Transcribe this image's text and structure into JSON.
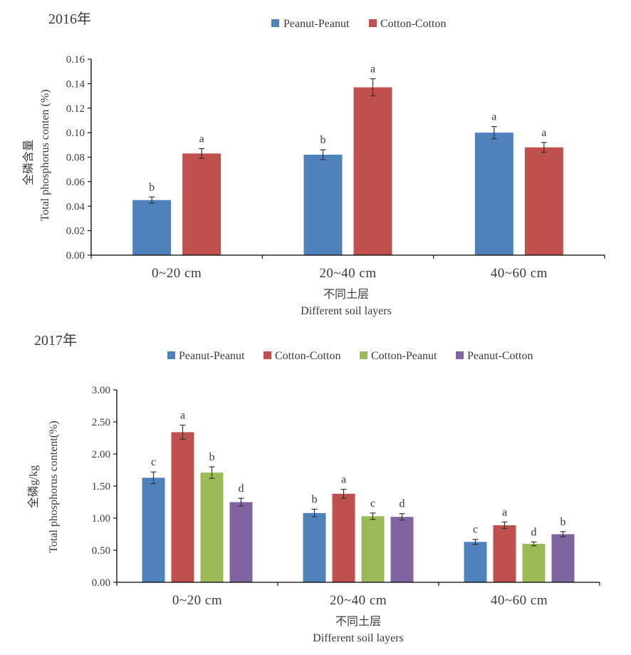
{
  "chart_data": [
    {
      "type": "bar",
      "title": "2016年",
      "categories": [
        "0~20 cm",
        "20~40 cm",
        "40~60 cm"
      ],
      "series": [
        {
          "name": "Peanut-Peanut",
          "color": "#4f81bd",
          "values": [
            0.045,
            0.082,
            0.1
          ],
          "errors": [
            0.0025,
            0.004,
            0.005
          ],
          "labels": [
            "b",
            "b",
            "a"
          ]
        },
        {
          "name": "Cotton-Cotton",
          "color": "#c0504d",
          "values": [
            0.083,
            0.137,
            0.088
          ],
          "errors": [
            0.004,
            0.007,
            0.004
          ],
          "labels": [
            "a",
            "a",
            "a"
          ]
        }
      ],
      "ylim": [
        0,
        0.16
      ],
      "yticks": [
        "0.00",
        "0.02",
        "0.04",
        "0.06",
        "0.08",
        "0.10",
        "0.12",
        "0.14",
        "0.16"
      ],
      "ylabel_cn": "全磷含量",
      "ylabel": "Total phosphorus conten (%)",
      "xlabel_cn": "不同土层",
      "xlabel": "Different soil layers",
      "legend": "top",
      "grid": false
    },
    {
      "type": "bar",
      "title": "2017年",
      "categories": [
        "0~20 cm",
        "20~40 cm",
        "40~60 cm"
      ],
      "series": [
        {
          "name": "Peanut-Peanut",
          "color": "#4f81bd",
          "values": [
            1.63,
            1.08,
            0.63
          ],
          "errors": [
            0.09,
            0.06,
            0.04
          ],
          "labels": [
            "c",
            "b",
            "c"
          ]
        },
        {
          "name": "Cotton-Cotton",
          "color": "#c0504d",
          "values": [
            2.34,
            1.38,
            0.89
          ],
          "errors": [
            0.11,
            0.07,
            0.05
          ],
          "labels": [
            "a",
            "a",
            "a"
          ]
        },
        {
          "name": "Cotton-Peanut",
          "color": "#9bbb59",
          "values": [
            1.71,
            1.03,
            0.6
          ],
          "errors": [
            0.09,
            0.05,
            0.03
          ],
          "labels": [
            "b",
            "c",
            "d"
          ]
        },
        {
          "name": "Peanut-Cotton",
          "color": "#8064a2",
          "values": [
            1.25,
            1.02,
            0.75
          ],
          "errors": [
            0.06,
            0.05,
            0.04
          ],
          "labels": [
            "d",
            "d",
            "b"
          ]
        }
      ],
      "ylim": [
        0,
        3.0
      ],
      "yticks": [
        "0.00",
        "0.50",
        "1.00",
        "1.50",
        "2.00",
        "2.50",
        "3.00"
      ],
      "ylabel_cn": "全磷g/kg",
      "ylabel": "Total phosphorus content(%)",
      "xlabel_cn": "不同土层",
      "xlabel": "Different soil layers",
      "legend": "top",
      "grid": false
    }
  ]
}
